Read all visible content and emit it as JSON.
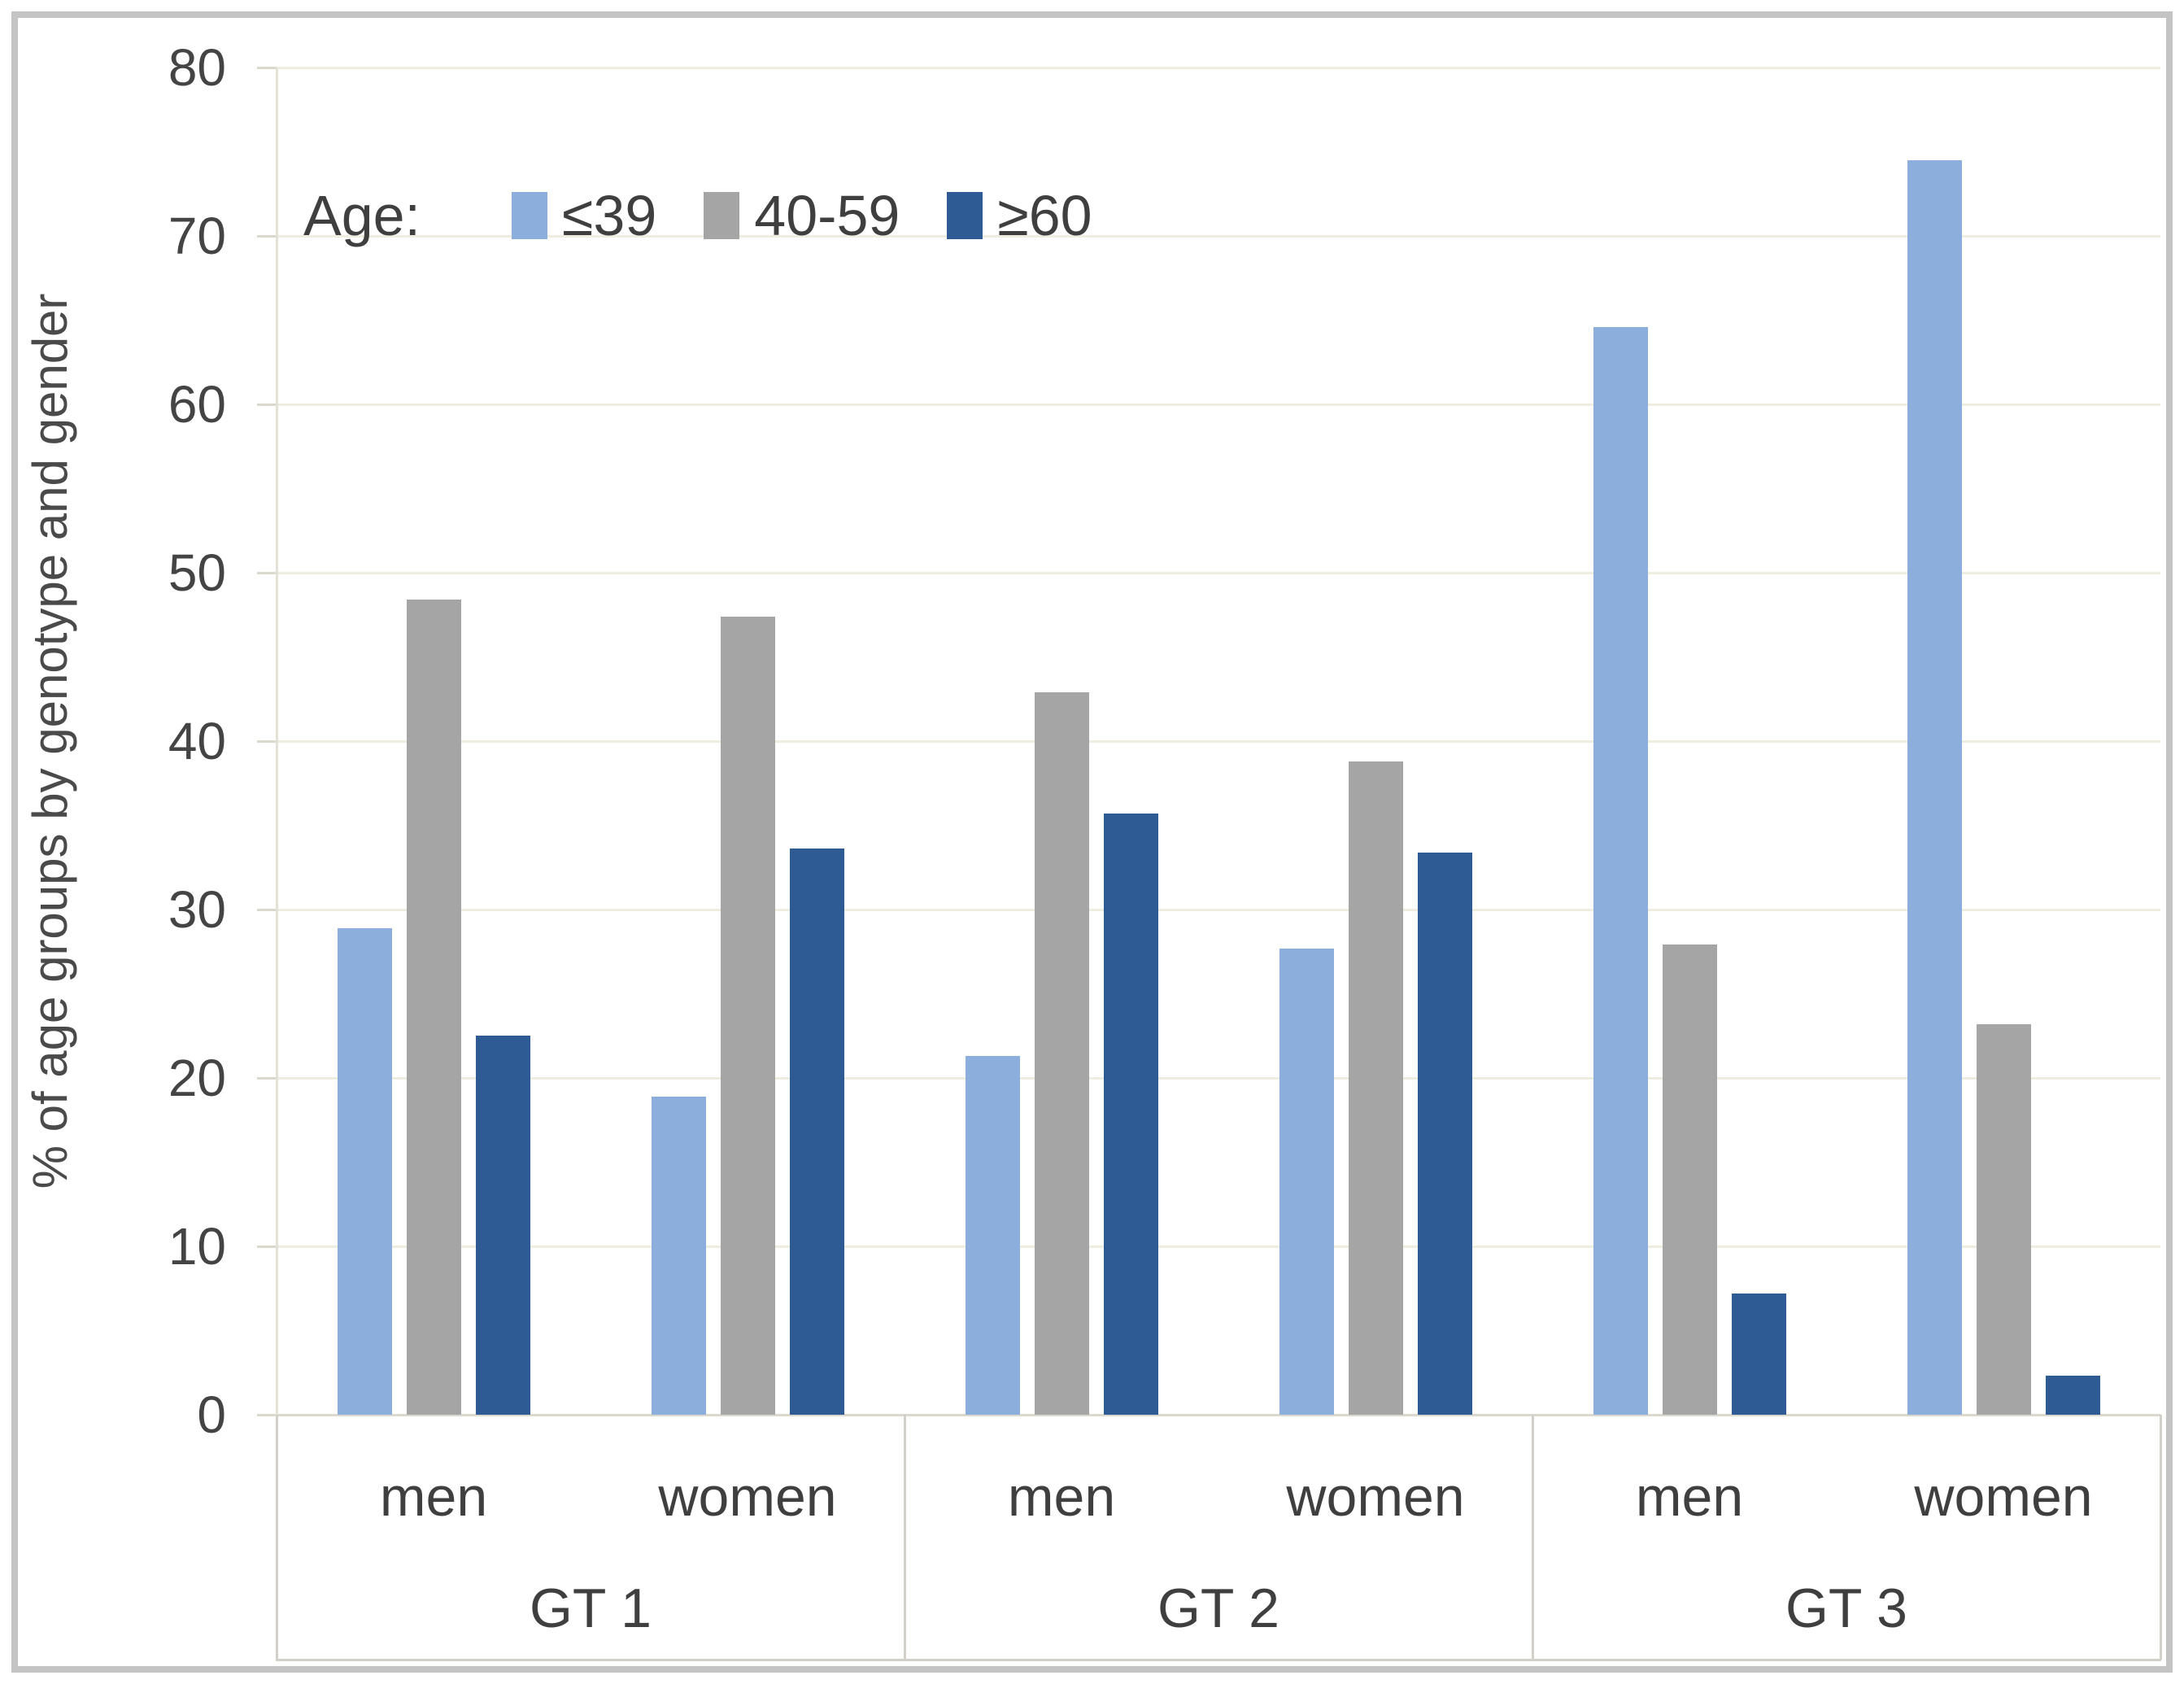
{
  "chart_data": {
    "type": "bar",
    "title": "",
    "ylabel": "% of age groups by genotype and gender",
    "xlabel": "",
    "ylim": [
      0,
      80
    ],
    "ytick_step": 10,
    "yticks": [
      "0",
      "10",
      "20",
      "30",
      "40",
      "50",
      "60",
      "70",
      "80"
    ],
    "grid": "horizontal",
    "legend_title": "Age:",
    "legend_position": "top-left inside plot area",
    "groups": [
      "GT 1",
      "GT 2",
      "GT 3"
    ],
    "subgroups": [
      "men",
      "women"
    ],
    "series": [
      {
        "name": "≤39",
        "color": "#8BAEDC",
        "values": [
          [
            28.9,
            18.9
          ],
          [
            21.3,
            27.7
          ],
          [
            64.6,
            74.5
          ]
        ]
      },
      {
        "name": "40-59",
        "color": "#A5A5A5",
        "values": [
          [
            48.4,
            47.4
          ],
          [
            42.9,
            38.8
          ],
          [
            27.9,
            23.2
          ]
        ]
      },
      {
        "name": "≥60",
        "color": "#2E5B94",
        "values": [
          [
            22.5,
            33.6
          ],
          [
            35.7,
            33.4
          ],
          [
            7.2,
            2.3
          ]
        ]
      }
    ],
    "colors": {
      "gridline": "#efede0",
      "baseline": "#dbd9ce",
      "axis_line": "#e4e2d6",
      "table_border": "#d2d0c8",
      "text": "#404040",
      "frame": "#c4c4c4",
      "background": "#ffffff"
    }
  }
}
